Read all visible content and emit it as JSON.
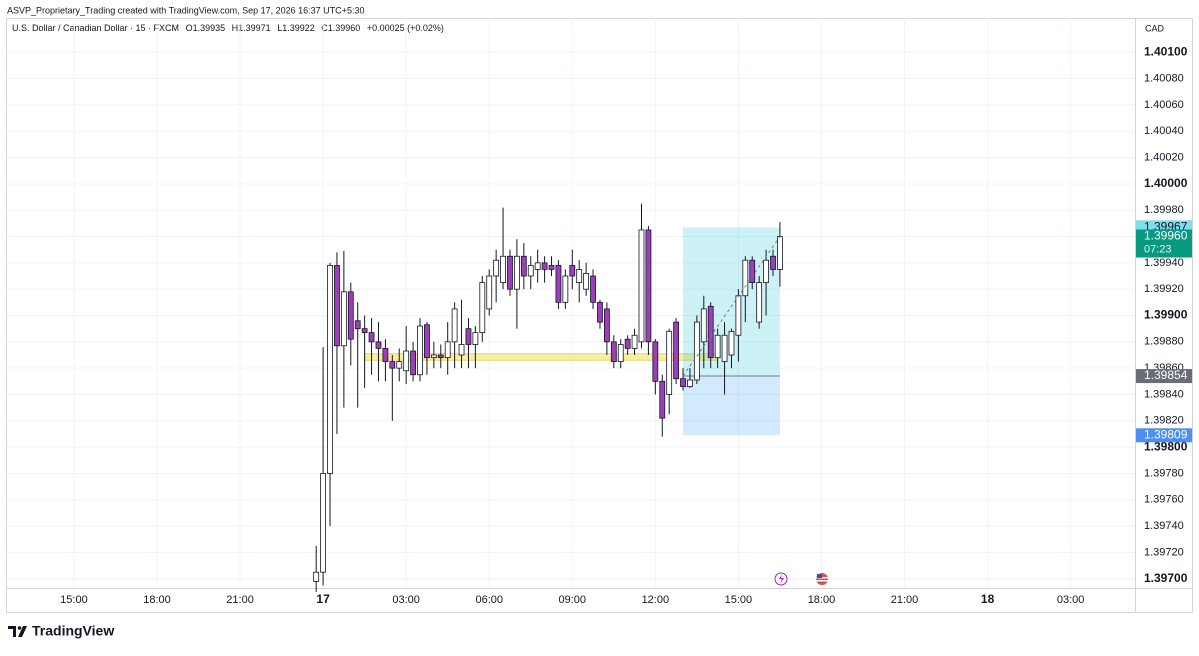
{
  "header": {
    "credit": "ASVP_Proprietary_Trading created with TradingView.com, Sep 17, 2026 16:37 UTC+5:30",
    "brand": "TradingView"
  },
  "chart_data": {
    "type": "candlestick",
    "title": "U.S. Dollar / Canadian Dollar · 15 · FXCM",
    "legend_values": [
      "O1.39935",
      "H1.39971",
      "L1.39922",
      "C1.39960",
      "+0.00025 (+0.02%)"
    ],
    "currency": "CAD",
    "up_color": "#ffffff",
    "down_color": "#9c3fb8",
    "wick_color": "#131722",
    "grid": true,
    "xlim": [
      -9.67,
      153.3
    ],
    "xticks": [
      {
        "value": 0,
        "label": "15:00"
      },
      {
        "value": 12,
        "label": "18:00"
      },
      {
        "value": 24,
        "label": "21:00"
      },
      {
        "value": 36,
        "label": "17"
      },
      {
        "value": 48,
        "label": "03:00"
      },
      {
        "value": 60,
        "label": "06:00"
      },
      {
        "value": 72,
        "label": "09:00"
      },
      {
        "value": 84,
        "label": "12:00"
      },
      {
        "value": 96,
        "label": "15:00"
      },
      {
        "value": 108,
        "label": "18:00"
      },
      {
        "value": 120,
        "label": "21:00"
      },
      {
        "value": 132,
        "label": "18"
      },
      {
        "value": 144,
        "label": "03:00"
      }
    ],
    "ylim": [
      1.39693,
      1.40126
    ],
    "yticks": [
      {
        "value": 1.401,
        "label": "1.40100"
      },
      {
        "value": 1.4008,
        "label": "1.40080"
      },
      {
        "value": 1.4006,
        "label": "1.40060"
      },
      {
        "value": 1.4004,
        "label": "1.40040"
      },
      {
        "value": 1.4002,
        "label": "1.40020"
      },
      {
        "value": 1.4,
        "label": "1.40000"
      },
      {
        "value": 1.3998,
        "label": "1.39980"
      },
      {
        "value": 1.3996,
        "label": "1.39960"
      },
      {
        "value": 1.3994,
        "label": "1.39940"
      },
      {
        "value": 1.3992,
        "label": "1.39920"
      },
      {
        "value": 1.399,
        "label": "1.39900"
      },
      {
        "value": 1.3988,
        "label": "1.39880"
      },
      {
        "value": 1.3986,
        "label": "1.39860"
      },
      {
        "value": 1.3984,
        "label": "1.39840"
      },
      {
        "value": 1.3982,
        "label": "1.39820"
      },
      {
        "value": 1.398,
        "label": "1.39800"
      },
      {
        "value": 1.3978,
        "label": "1.39780"
      },
      {
        "value": 1.3976,
        "label": "1.39760"
      },
      {
        "value": 1.3974,
        "label": "1.39740"
      },
      {
        "value": 1.3972,
        "label": "1.39720"
      },
      {
        "value": 1.397,
        "label": "1.39700"
      }
    ],
    "x": [
      35,
      36,
      37,
      38,
      39,
      40,
      41,
      42,
      43,
      44,
      45,
      46,
      47,
      48,
      49,
      50,
      51,
      52,
      53,
      54,
      55,
      56,
      57,
      58,
      59,
      60,
      61,
      62,
      63,
      64,
      65,
      66,
      67,
      68,
      69,
      70,
      71,
      72,
      73,
      74,
      75,
      76,
      77,
      78,
      79,
      80,
      81,
      82,
      83,
      84,
      85,
      86,
      87,
      88,
      89,
      90,
      91,
      92,
      93,
      94,
      95,
      96,
      97,
      98,
      99,
      100,
      101,
      102
    ],
    "open": [
      1.39698,
      1.39705,
      1.3978,
      1.39938,
      1.39877,
      1.39918,
      1.39896,
      1.3989,
      1.39887,
      1.3988,
      1.39875,
      1.39865,
      1.3986,
      1.39858,
      1.39873,
      1.39855,
      1.39893,
      1.39868,
      1.3987,
      1.39868,
      1.3988,
      1.3987,
      1.3989,
      1.39878,
      1.39887,
      1.39905,
      1.3993,
      1.39925,
      1.39945,
      1.3992,
      1.39945,
      1.3993,
      1.39935,
      1.3994,
      1.39938,
      1.39938,
      1.3991,
      1.39938,
      1.39925,
      1.3992,
      1.3993,
      1.3991,
      1.39905,
      1.3988,
      1.39865,
      1.39882,
      1.39875,
      1.3988,
      1.39965,
      1.3988,
      1.3985,
      1.3984,
      1.39895,
      1.39852,
      1.39846,
      1.39851,
      1.3988,
      1.39907,
      1.39868,
      1.39865,
      1.3987,
      1.39885,
      1.39915,
      1.39942,
      1.39895,
      1.39925,
      1.39945,
      1.39935
    ],
    "high": [
      1.39725,
      1.39876,
      1.3994,
      1.39948,
      1.39949,
      1.39925,
      1.3991,
      1.399,
      1.39898,
      1.39895,
      1.39882,
      1.3987,
      1.39875,
      1.39892,
      1.3988,
      1.39898,
      1.39895,
      1.3988,
      1.39878,
      1.39895,
      1.3991,
      1.39912,
      1.39898,
      1.39892,
      1.3993,
      1.39935,
      1.3995,
      1.39982,
      1.3995,
      1.39958,
      1.39955,
      1.39945,
      1.3995,
      1.39945,
      1.39945,
      1.39942,
      1.39935,
      1.3995,
      1.39942,
      1.3994,
      1.39935,
      1.39912,
      1.3991,
      1.39885,
      1.39882,
      1.39885,
      1.3989,
      1.39985,
      1.39968,
      1.39882,
      1.39855,
      1.3989,
      1.39898,
      1.3986,
      1.3986,
      1.399,
      1.39915,
      1.3991,
      1.3989,
      1.39895,
      1.3989,
      1.3992,
      1.39945,
      1.39945,
      1.3993,
      1.3995,
      1.3995,
      1.39971
    ],
    "low": [
      1.3969,
      1.39695,
      1.3974,
      1.3981,
      1.3983,
      1.39862,
      1.3983,
      1.39845,
      1.39855,
      1.3985,
      1.3985,
      1.3982,
      1.3985,
      1.39848,
      1.3985,
      1.3985,
      1.39855,
      1.3986,
      1.3986,
      1.39855,
      1.3986,
      1.3986,
      1.3986,
      1.3986,
      1.3988,
      1.399,
      1.3991,
      1.3992,
      1.39915,
      1.3989,
      1.3992,
      1.3992,
      1.39925,
      1.39925,
      1.3993,
      1.39905,
      1.39905,
      1.3992,
      1.3991,
      1.39915,
      1.39905,
      1.3989,
      1.3987,
      1.3986,
      1.3986,
      1.3987,
      1.3987,
      1.39875,
      1.3987,
      1.3984,
      1.39808,
      1.39825,
      1.39848,
      1.39843,
      1.39845,
      1.39848,
      1.3986,
      1.3986,
      1.3986,
      1.3984,
      1.3986,
      1.39865,
      1.39895,
      1.3992,
      1.3989,
      1.399,
      1.3993,
      1.39922
    ],
    "close": [
      1.39705,
      1.3978,
      1.39938,
      1.39877,
      1.39918,
      1.39882,
      1.3989,
      1.39887,
      1.3988,
      1.39875,
      1.39865,
      1.3986,
      1.39865,
      1.39873,
      1.39855,
      1.39892,
      1.39868,
      1.3987,
      1.39868,
      1.3988,
      1.39905,
      1.39878,
      1.39878,
      1.39887,
      1.39925,
      1.3993,
      1.39942,
      1.39945,
      1.3992,
      1.39945,
      1.3993,
      1.39938,
      1.3994,
      1.39935,
      1.39935,
      1.3991,
      1.3993,
      1.3993,
      1.39935,
      1.39932,
      1.3991,
      1.39895,
      1.3988,
      1.39865,
      1.39878,
      1.39875,
      1.39885,
      1.39965,
      1.3988,
      1.3985,
      1.39822,
      1.39888,
      1.39852,
      1.39846,
      1.39851,
      1.39895,
      1.39905,
      1.39868,
      1.39885,
      1.39885,
      1.39888,
      1.39915,
      1.39942,
      1.39925,
      1.39925,
      1.39942,
      1.39935,
      1.3996
    ],
    "zone": {
      "x": [
        42,
        93
      ],
      "y": [
        1.39866,
        1.39871
      ],
      "color": "#f7eea0"
    },
    "position": {
      "x": [
        88,
        102
      ],
      "target": {
        "value": 1.39967,
        "label": "1.39967"
      },
      "entry": {
        "value": 1.39854,
        "label": "1.39854"
      },
      "stop": {
        "value": 1.39809,
        "label": "1.39809"
      }
    },
    "last_price": {
      "value": 1.3996,
      "label": "1.39960"
    },
    "countdown": "07:23"
  }
}
